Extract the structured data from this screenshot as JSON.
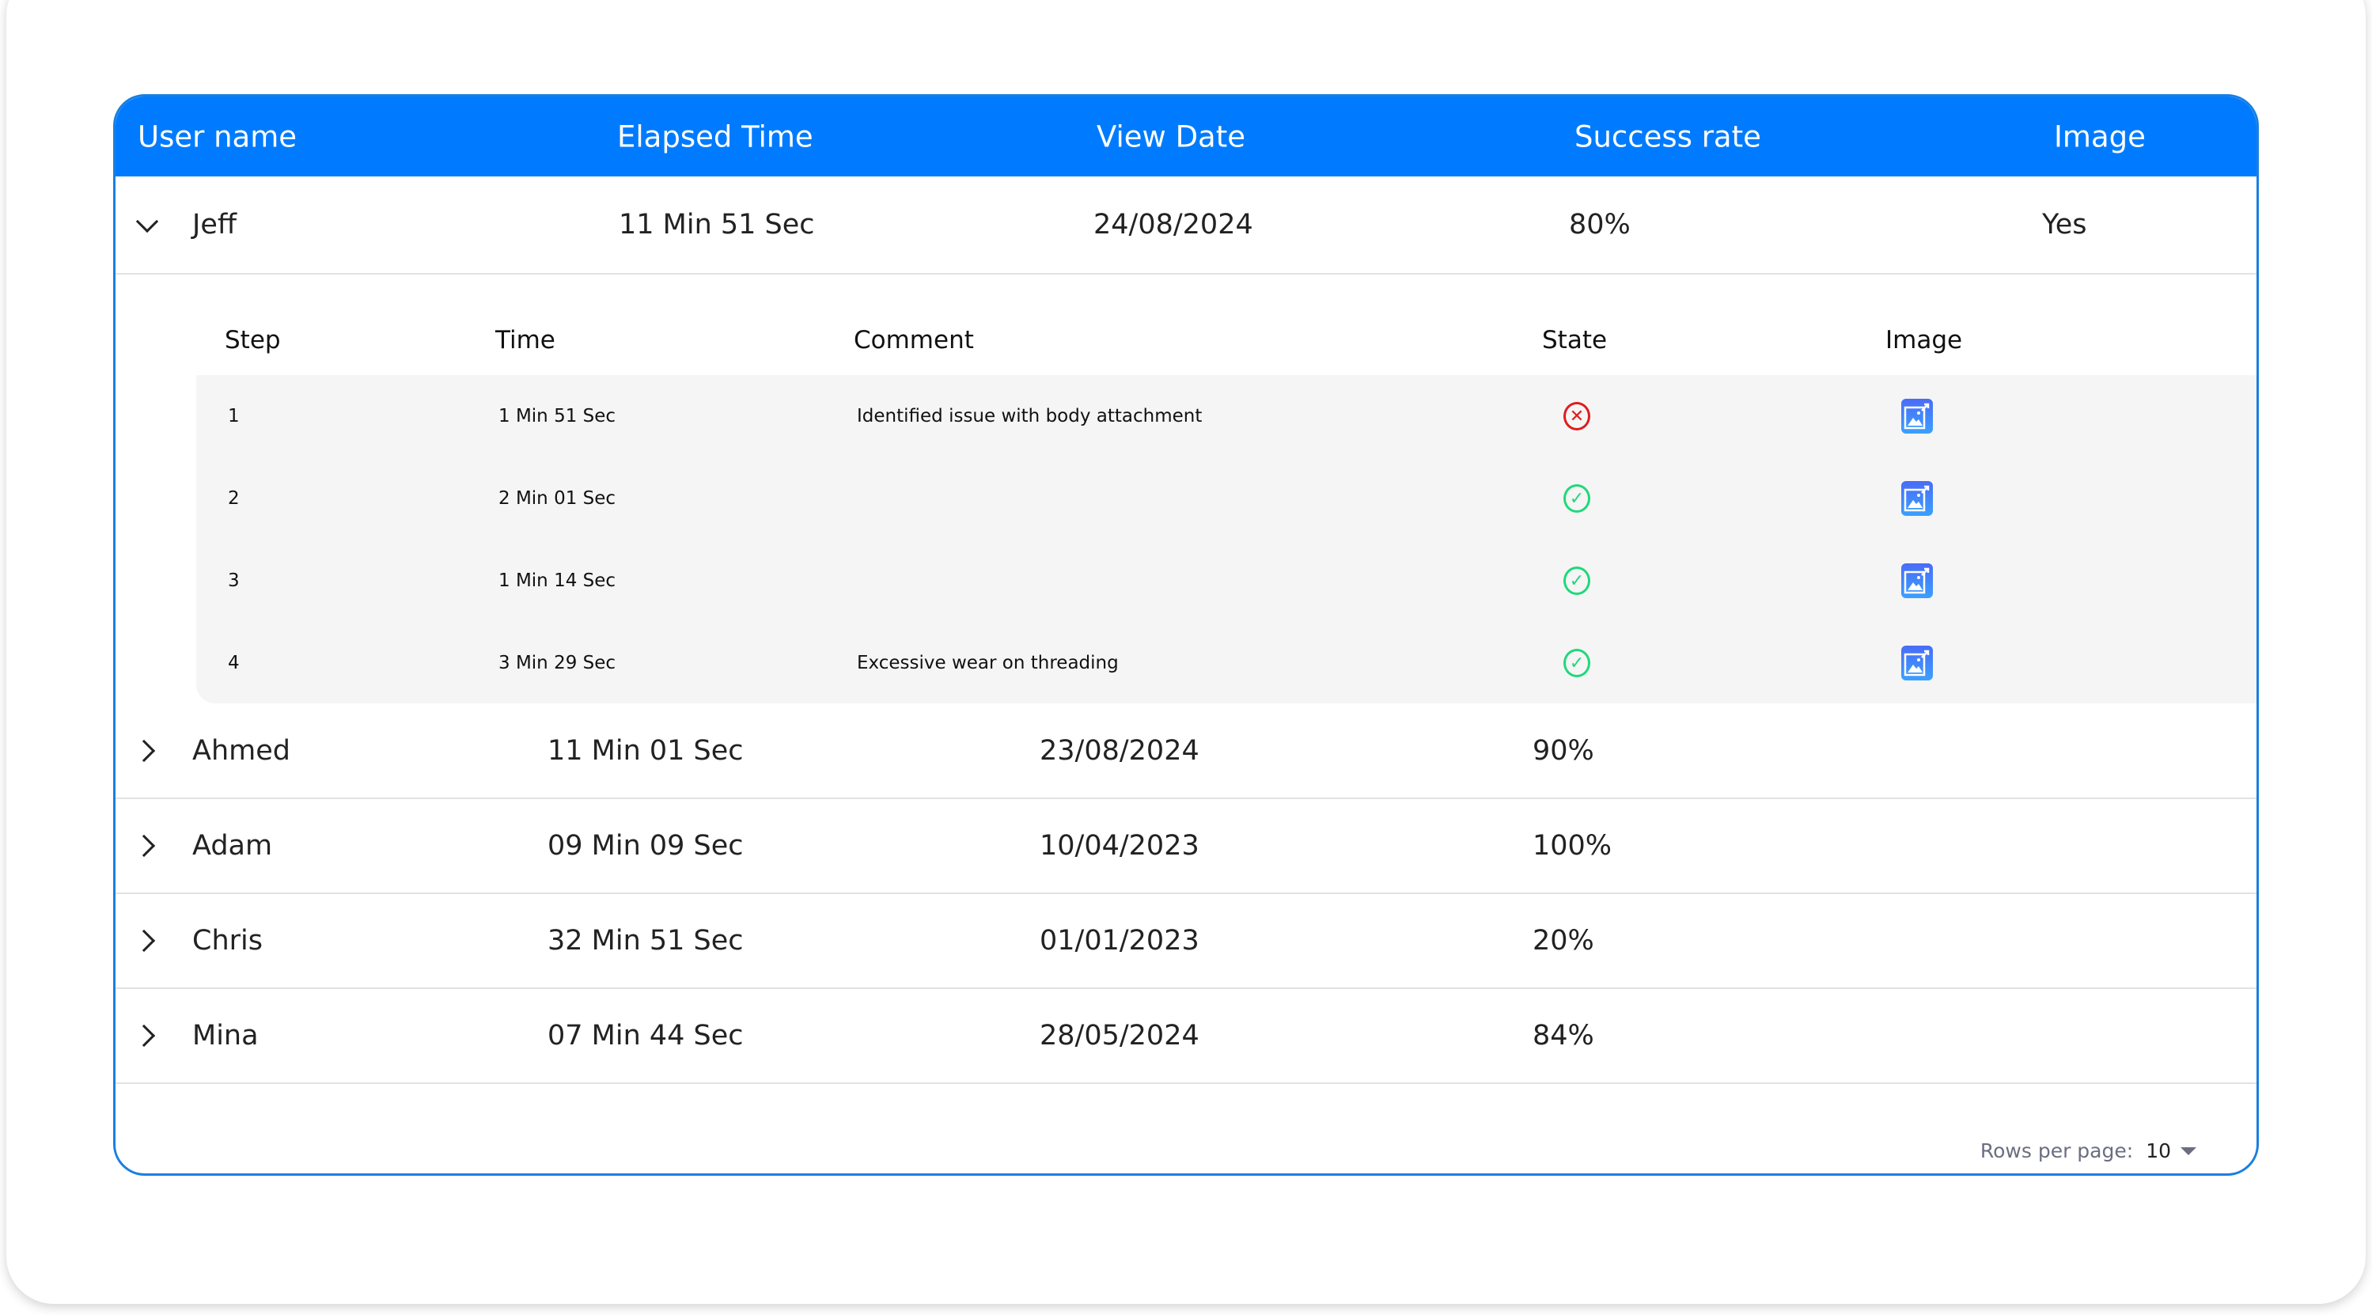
{
  "columns": [
    "User name",
    "Elapsed Time",
    "View Date",
    "Success rate",
    "Image"
  ],
  "expanded": {
    "name": "Jeff",
    "elapsed": "11 Min 51 Sec",
    "date": "24/08/2024",
    "rate": "80%",
    "image": "Yes"
  },
  "steps_columns": [
    "Step",
    "Time",
    "Comment",
    "State",
    "Image"
  ],
  "steps": [
    {
      "step": "1",
      "time": "1 Min 51 Sec",
      "comment": "Identified issue with body attachment",
      "state": "fail"
    },
    {
      "step": "2",
      "time": "2 Min 01 Sec",
      "comment": "",
      "state": "success"
    },
    {
      "step": "3",
      "time": "1 Min 14 Sec",
      "comment": "",
      "state": "success"
    },
    {
      "step": "4",
      "time": "3 Min 29 Sec",
      "comment": "Excessive wear on threading",
      "state": "success"
    }
  ],
  "rows": [
    {
      "name": "Ahmed",
      "elapsed": "11 Min 01 Sec",
      "date": "23/08/2024",
      "rate": "90%"
    },
    {
      "name": "Adam",
      "elapsed": "09 Min 09 Sec",
      "date": "10/04/2023",
      "rate": "100%"
    },
    {
      "name": "Chris",
      "elapsed": "32 Min 51 Sec",
      "date": "01/01/2023",
      "rate": "20%"
    },
    {
      "name": "Mina",
      "elapsed": "07 Min 44 Sec",
      "date": "28/05/2024",
      "rate": "84%"
    }
  ],
  "footer": {
    "rows_per_page_label": "Rows per page:",
    "rows_per_page": "10"
  },
  "colors": {
    "header": "#007bff",
    "fail": "#e01b1b",
    "success": "#1ed97a"
  }
}
